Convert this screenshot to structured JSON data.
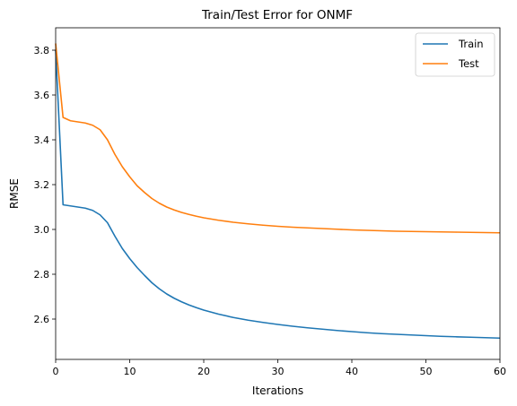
{
  "chart_data": {
    "type": "line",
    "title": "Train/Test Error for ONMF",
    "xlabel": "Iterations",
    "ylabel": "RMSE",
    "xlim": [
      0,
      60
    ],
    "ylim": [
      2.42,
      3.9
    ],
    "xticks": [
      0,
      10,
      20,
      30,
      40,
      50,
      60
    ],
    "yticks": [
      2.6,
      2.8,
      3.0,
      3.2,
      3.4,
      3.6,
      3.8
    ],
    "xtick_labels": [
      "0",
      "10",
      "20",
      "30",
      "40",
      "50",
      "60"
    ],
    "ytick_labels": [
      "2.6",
      "2.8",
      "3.0",
      "3.2",
      "3.4",
      "3.6",
      "3.8"
    ],
    "grid": false,
    "legend_position": "top-right",
    "x": [
      0,
      1,
      2,
      3,
      4,
      5,
      6,
      7,
      8,
      9,
      10,
      11,
      12,
      13,
      14,
      15,
      16,
      17,
      18,
      19,
      20,
      22,
      24,
      26,
      28,
      30,
      32,
      34,
      36,
      38,
      40,
      42,
      44,
      46,
      48,
      50,
      52,
      54,
      56,
      58,
      60
    ],
    "series": [
      {
        "name": "Train",
        "color": "#1f77b4",
        "values": [
          3.8,
          3.11,
          3.105,
          3.1,
          3.095,
          3.085,
          3.065,
          3.03,
          2.97,
          2.915,
          2.87,
          2.83,
          2.795,
          2.762,
          2.735,
          2.712,
          2.693,
          2.677,
          2.663,
          2.651,
          2.64,
          2.622,
          2.607,
          2.595,
          2.585,
          2.576,
          2.568,
          2.561,
          2.555,
          2.549,
          2.544,
          2.539,
          2.535,
          2.532,
          2.529,
          2.526,
          2.523,
          2.521,
          2.519,
          2.517,
          2.515
        ]
      },
      {
        "name": "Test",
        "color": "#ff7f0e",
        "values": [
          3.83,
          3.5,
          3.485,
          3.48,
          3.475,
          3.465,
          3.445,
          3.4,
          3.335,
          3.28,
          3.235,
          3.195,
          3.165,
          3.138,
          3.117,
          3.1,
          3.087,
          3.076,
          3.067,
          3.059,
          3.052,
          3.041,
          3.032,
          3.025,
          3.019,
          3.014,
          3.01,
          3.007,
          3.004,
          3.001,
          2.998,
          2.996,
          2.994,
          2.992,
          2.991,
          2.99,
          2.989,
          2.988,
          2.987,
          2.986,
          2.985
        ]
      }
    ]
  }
}
